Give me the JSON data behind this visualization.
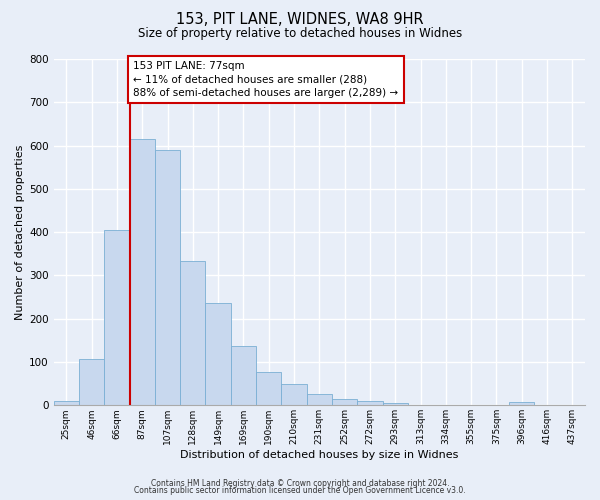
{
  "title": "153, PIT LANE, WIDNES, WA8 9HR",
  "subtitle": "Size of property relative to detached houses in Widnes",
  "xlabel": "Distribution of detached houses by size in Widnes",
  "ylabel": "Number of detached properties",
  "bin_labels": [
    "25sqm",
    "46sqm",
    "66sqm",
    "87sqm",
    "107sqm",
    "128sqm",
    "149sqm",
    "169sqm",
    "190sqm",
    "210sqm",
    "231sqm",
    "252sqm",
    "272sqm",
    "293sqm",
    "313sqm",
    "334sqm",
    "355sqm",
    "375sqm",
    "396sqm",
    "416sqm",
    "437sqm"
  ],
  "bar_values": [
    10,
    107,
    405,
    615,
    590,
    333,
    237,
    136,
    76,
    49,
    25,
    15,
    10,
    5,
    0,
    0,
    0,
    0,
    8,
    0,
    0
  ],
  "bar_color": "#c8d8ee",
  "bar_edge_color": "#7aafd4",
  "property_line_x": 2.5,
  "property_line_color": "#cc0000",
  "ylim": [
    0,
    800
  ],
  "yticks": [
    0,
    100,
    200,
    300,
    400,
    500,
    600,
    700,
    800
  ],
  "annotation_text": "153 PIT LANE: 77sqm\n← 11% of detached houses are smaller (288)\n88% of semi-detached houses are larger (2,289) →",
  "annotation_box_color": "#ffffff",
  "annotation_box_edge": "#cc0000",
  "footer_line1": "Contains HM Land Registry data © Crown copyright and database right 2024.",
  "footer_line2": "Contains public sector information licensed under the Open Government Licence v3.0.",
  "background_color": "#e8eef8",
  "grid_color": "#ffffff"
}
